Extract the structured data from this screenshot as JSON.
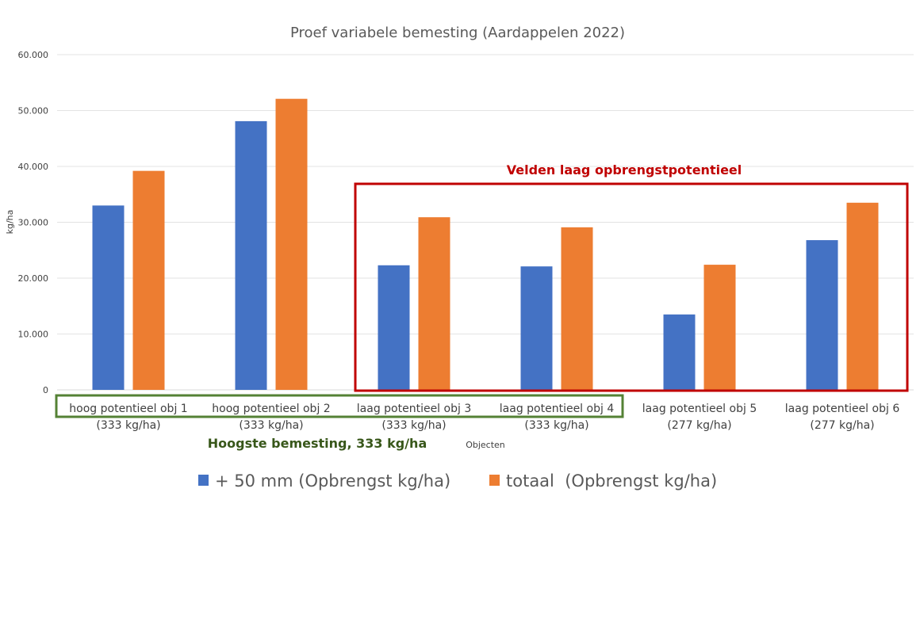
{
  "chart_data": {
    "type": "bar",
    "title": "Proef variabele bemesting (Aardappelen 2022)",
    "xlabel": "Objecten",
    "ylabel": "kg/ha",
    "ylim": [
      0,
      60000
    ],
    "yticks": [
      0,
      10000,
      20000,
      30000,
      40000,
      50000,
      60000
    ],
    "ytick_labels": [
      "0",
      "10.000",
      "20.000",
      "30.000",
      "40.000",
      "50.000",
      "60.000"
    ],
    "grid": true,
    "legend_position": "bottom",
    "categories": [
      {
        "line1": "hoog potentieel obj 1",
        "line2": "(333 kg/ha)"
      },
      {
        "line1": "hoog potentieel obj 2",
        "line2": "(333 kg/ha)"
      },
      {
        "line1": "laag potentieel obj 3",
        "line2": "(333 kg/ha)"
      },
      {
        "line1": "laag potentieel obj 4",
        "line2": "(333 kg/ha)"
      },
      {
        "line1": "laag potentieel obj 5",
        "line2": "(277 kg/ha)"
      },
      {
        "line1": "laag potentieel obj 6",
        "line2": "(277 kg/ha)"
      }
    ],
    "series": [
      {
        "name": "+ 50 mm (Opbrengst kg/ha)",
        "color": "#4472c4",
        "values": [
          33000,
          48100,
          22300,
          22100,
          13500,
          26800
        ]
      },
      {
        "name": "totaal  (Opbrengst kg/ha)",
        "color": "#ed7d31",
        "values": [
          39200,
          52100,
          30900,
          29100,
          22400,
          33500
        ]
      }
    ],
    "annotations": [
      {
        "text": "Velden laag opbrengstpotentieel",
        "color": "#c00000",
        "box_categories": [
          2,
          5
        ]
      },
      {
        "text": "Hoogste bemesting, 333 kg/ha",
        "color": "#38571a",
        "box_categories": [
          0,
          3
        ]
      }
    ]
  }
}
